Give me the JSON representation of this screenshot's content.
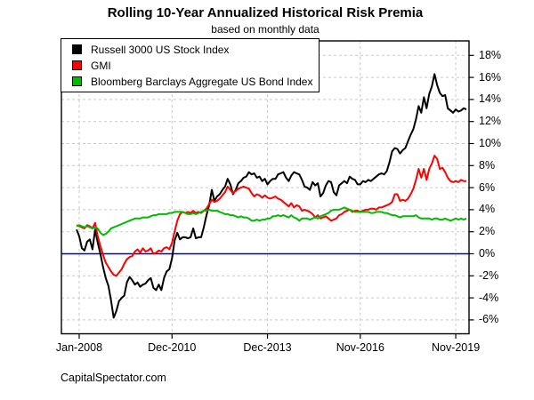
{
  "header": {
    "title": "Rolling 10-Year Annualized Historical Risk Premia",
    "subtitle": "based on monthly data"
  },
  "footer": {
    "text": "CapitalSpectator.com"
  },
  "chart_data": {
    "type": "line",
    "title": "Rolling 10-Year Annualized Historical Risk Premia",
    "subtitle": "based on monthly data",
    "interval": "monthly",
    "grid": "dashed",
    "legend_position": "top-left",
    "x_tick_labels": [
      "Jan-2008",
      "Dec-2010",
      "Dec-2013",
      "Nov-2016",
      "Nov-2019"
    ],
    "x_tick_indices": [
      1,
      36,
      72,
      107,
      143
    ],
    "y_tick_values": [
      18,
      16,
      14,
      12,
      10,
      8,
      6,
      4,
      2,
      0,
      -2,
      -4,
      -6
    ],
    "y_tick_labels": [
      "18%",
      "16%",
      "14%",
      "12%",
      "10%",
      "8%",
      "6%",
      "4%",
      "2%",
      "0%",
      "-2%",
      "-4%",
      "-6%"
    ],
    "ylim": [
      -7.3,
      19.3
    ],
    "zero_line": {
      "value": 0,
      "color": "#0000CD"
    },
    "grid_color": "#C9C9C9",
    "frame_color": "#000000",
    "series": [
      {
        "name": "Russell 3000 US Stock Index",
        "color": "#000000",
        "values": [
          2.2,
          1.6,
          0.5,
          0.3,
          1.1,
          1.3,
          0.4,
          2.2,
          1.0,
          0.0,
          -1.2,
          -2.2,
          -2.9,
          -4.2,
          -5.8,
          -5.2,
          -4.3,
          -4.0,
          -3.8,
          -2.6,
          -2.1,
          -2.4,
          -2.8,
          -2.6,
          -3.0,
          -2.8,
          -2.7,
          -2.4,
          -2.2,
          -3.1,
          -3.3,
          -2.8,
          -3.3,
          -2.2,
          -1.6,
          -1.4,
          -0.4,
          1.2,
          1.9,
          1.3,
          1.5,
          1.5,
          1.4,
          1.5,
          2.3,
          1.4,
          1.5,
          1.5,
          2.4,
          3.5,
          4.4,
          5.8,
          4.8,
          5.2,
          5.4,
          5.8,
          6.1,
          6.8,
          6.3,
          5.4,
          5.8,
          6.4,
          6.6,
          6.9,
          7.0,
          7.4,
          7.2,
          7.3,
          6.9,
          7.0,
          6.6,
          6.8,
          6.3,
          6.6,
          6.8,
          6.8,
          7.2,
          7.3,
          7.4,
          6.9,
          6.6,
          7.1,
          7.4,
          7.3,
          7.2,
          6.7,
          6.1,
          6.0,
          5.8,
          6.5,
          6.2,
          6.4,
          5.2,
          5.5,
          6.2,
          6.6,
          6.5,
          5.6,
          5.3,
          6.2,
          6.4,
          6.6,
          6.4,
          7.0,
          6.8,
          6.7,
          6.3,
          6.3,
          6.6,
          6.5,
          6.7,
          6.6,
          6.8,
          7.0,
          7.2,
          7.3,
          7.2,
          7.5,
          8.3,
          9.3,
          9.6,
          9.5,
          9.1,
          9.4,
          9.6,
          10.2,
          10.8,
          11.3,
          12.2,
          13.4,
          12.8,
          14.2,
          13.2,
          14.5,
          15.2,
          16.3,
          15.3,
          14.6,
          14.3,
          14.4,
          13.2,
          13.0,
          12.8,
          13.1,
          12.9,
          13.0,
          13.2,
          13.1
        ]
      },
      {
        "name": "GMI",
        "color": "#FF0000",
        "values": [
          2.6,
          2.5,
          2.4,
          2.3,
          2.6,
          2.5,
          2.3,
          2.8,
          1.6,
          0.7,
          -0.1,
          -0.8,
          -1.2,
          -1.6,
          -1.9,
          -2.0,
          -1.7,
          -1.4,
          -0.9,
          -0.5,
          -0.3,
          -0.2,
          0.2,
          0.4,
          0.1,
          0.5,
          0.2,
          0.3,
          0.5,
          0.0,
          0.1,
          0.3,
          0.2,
          0.5,
          0.6,
          0.4,
          1.0,
          2.0,
          3.0,
          3.6,
          3.8,
          3.7,
          3.8,
          3.7,
          3.9,
          3.7,
          3.8,
          3.7,
          3.9,
          4.1,
          4.5,
          4.9,
          4.7,
          4.8,
          5.0,
          5.3,
          5.6,
          6.1,
          5.8,
          5.5,
          5.7,
          5.9,
          6.0,
          6.1,
          6.0,
          5.9,
          5.5,
          5.2,
          5.4,
          5.3,
          5.1,
          5.3,
          5.1,
          5.0,
          5.1,
          5.2,
          5.0,
          4.9,
          4.7,
          4.5,
          4.3,
          4.6,
          4.2,
          4.4,
          4.3,
          3.9,
          4.0,
          3.9,
          3.8,
          3.6,
          3.3,
          3.5,
          3.2,
          3.3,
          3.4,
          3.2,
          3.0,
          3.1,
          3.2,
          3.5,
          3.6,
          3.8,
          3.9,
          4.0,
          3.8,
          3.9,
          3.9,
          3.8,
          3.9,
          4.0,
          4.0,
          4.1,
          4.1,
          4.0,
          4.2,
          4.2,
          4.3,
          4.4,
          4.5,
          4.7,
          5.4,
          5.4,
          4.8,
          4.9,
          4.8,
          5.0,
          5.4,
          5.9,
          6.7,
          7.7,
          6.9,
          7.7,
          6.7,
          7.7,
          8.2,
          8.9,
          8.6,
          7.7,
          7.8,
          7.4,
          6.9,
          6.6,
          6.5,
          6.6,
          6.5,
          6.7,
          6.6,
          6.6
        ]
      },
      {
        "name": "Bloomberg Barclays Aggregate US Bond Index",
        "color": "#00BB00",
        "values": [
          2.5,
          2.6,
          2.5,
          2.4,
          2.5,
          2.4,
          2.3,
          2.4,
          2.3,
          1.9,
          1.7,
          1.8,
          2.0,
          2.3,
          2.4,
          2.5,
          2.6,
          2.7,
          2.8,
          2.9,
          3.0,
          3.1,
          3.2,
          3.2,
          3.2,
          3.3,
          3.3,
          3.3,
          3.4,
          3.5,
          3.5,
          3.6,
          3.6,
          3.6,
          3.6,
          3.7,
          3.7,
          3.8,
          3.8,
          3.8,
          3.8,
          3.7,
          3.6,
          3.6,
          3.7,
          3.6,
          3.7,
          3.8,
          3.9,
          3.9,
          4.0,
          3.9,
          3.9,
          3.9,
          3.8,
          3.7,
          3.6,
          3.6,
          3.5,
          3.5,
          3.4,
          3.3,
          3.4,
          3.3,
          3.3,
          3.2,
          3.0,
          3.0,
          3.1,
          3.0,
          3.1,
          3.1,
          3.2,
          3.2,
          3.4,
          3.4,
          3.5,
          3.4,
          3.5,
          3.4,
          3.3,
          3.5,
          3.3,
          3.2,
          3.0,
          3.2,
          3.2,
          3.2,
          3.1,
          3.2,
          3.3,
          3.2,
          3.4,
          3.5,
          3.6,
          3.7,
          3.9,
          4.0,
          4.0,
          4.0,
          4.1,
          4.2,
          4.1,
          4.0,
          3.9,
          3.8,
          3.8,
          3.8,
          3.8,
          3.8,
          3.8,
          3.7,
          3.7,
          3.8,
          3.8,
          3.8,
          3.7,
          3.7,
          3.6,
          3.5,
          3.5,
          3.4,
          3.3,
          3.4,
          3.4,
          3.4,
          3.4,
          3.4,
          3.5,
          3.3,
          3.2,
          3.2,
          3.2,
          3.2,
          3.1,
          3.2,
          3.2,
          3.1,
          3.1,
          3.2,
          3.1,
          3.0,
          3.1,
          3.2,
          3.1,
          3.2,
          3.1,
          3.2
        ]
      }
    ]
  }
}
